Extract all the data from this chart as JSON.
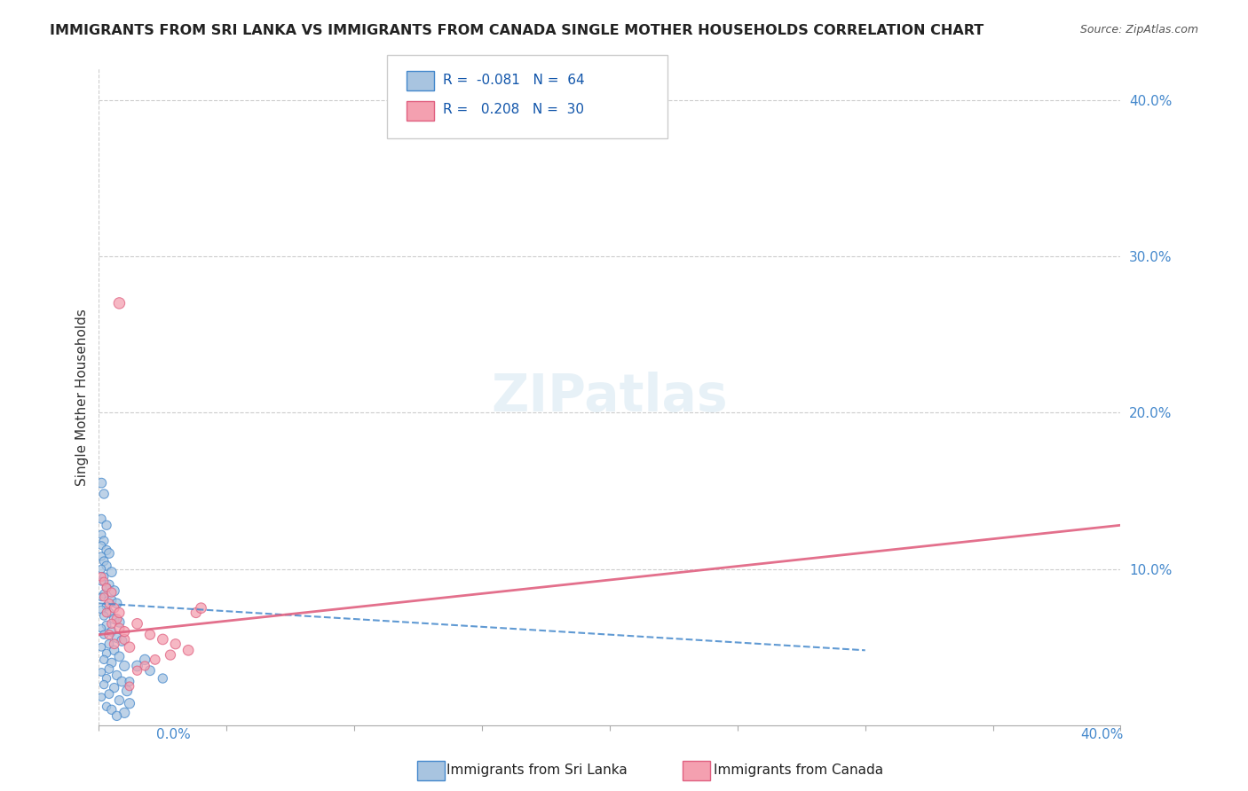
{
  "title": "IMMIGRANTS FROM SRI LANKA VS IMMIGRANTS FROM CANADA SINGLE MOTHER HOUSEHOLDS CORRELATION CHART",
  "source": "Source: ZipAtlas.com",
  "ylabel": "Single Mother Households",
  "xlim": [
    0,
    0.4
  ],
  "ylim": [
    0,
    0.42
  ],
  "legend_r_blue": "-0.081",
  "legend_n_blue": "64",
  "legend_r_pink": "0.208",
  "legend_n_pink": "30",
  "blue_color": "#a8c4e0",
  "pink_color": "#f4a0b0",
  "trend_blue_color": "#4488cc",
  "trend_pink_color": "#e06080",
  "sri_lanka_points": [
    [
      0.001,
      0.155
    ],
    [
      0.002,
      0.148
    ],
    [
      0.001,
      0.132
    ],
    [
      0.003,
      0.128
    ],
    [
      0.001,
      0.122
    ],
    [
      0.002,
      0.118
    ],
    [
      0.001,
      0.115
    ],
    [
      0.003,
      0.112
    ],
    [
      0.004,
      0.11
    ],
    [
      0.001,
      0.108
    ],
    [
      0.002,
      0.105
    ],
    [
      0.003,
      0.102
    ],
    [
      0.001,
      0.1
    ],
    [
      0.005,
      0.098
    ],
    [
      0.002,
      0.095
    ],
    [
      0.001,
      0.092
    ],
    [
      0.004,
      0.09
    ],
    [
      0.003,
      0.088
    ],
    [
      0.006,
      0.086
    ],
    [
      0.002,
      0.084
    ],
    [
      0.001,
      0.082
    ],
    [
      0.005,
      0.08
    ],
    [
      0.007,
      0.078
    ],
    [
      0.003,
      0.076
    ],
    [
      0.001,
      0.074
    ],
    [
      0.004,
      0.072
    ],
    [
      0.002,
      0.07
    ],
    [
      0.006,
      0.068
    ],
    [
      0.008,
      0.066
    ],
    [
      0.003,
      0.064
    ],
    [
      0.001,
      0.062
    ],
    [
      0.005,
      0.06
    ],
    [
      0.002,
      0.058
    ],
    [
      0.007,
      0.056
    ],
    [
      0.009,
      0.054
    ],
    [
      0.004,
      0.052
    ],
    [
      0.001,
      0.05
    ],
    [
      0.006,
      0.048
    ],
    [
      0.003,
      0.046
    ],
    [
      0.008,
      0.044
    ],
    [
      0.002,
      0.042
    ],
    [
      0.005,
      0.04
    ],
    [
      0.01,
      0.038
    ],
    [
      0.004,
      0.036
    ],
    [
      0.001,
      0.034
    ],
    [
      0.007,
      0.032
    ],
    [
      0.003,
      0.03
    ],
    [
      0.009,
      0.028
    ],
    [
      0.002,
      0.026
    ],
    [
      0.006,
      0.024
    ],
    [
      0.011,
      0.022
    ],
    [
      0.004,
      0.02
    ],
    [
      0.001,
      0.018
    ],
    [
      0.008,
      0.016
    ],
    [
      0.012,
      0.014
    ],
    [
      0.003,
      0.012
    ],
    [
      0.005,
      0.01
    ],
    [
      0.01,
      0.008
    ],
    [
      0.007,
      0.006
    ],
    [
      0.015,
      0.038
    ],
    [
      0.018,
      0.042
    ],
    [
      0.02,
      0.035
    ],
    [
      0.025,
      0.03
    ],
    [
      0.012,
      0.028
    ]
  ],
  "canada_points": [
    [
      0.001,
      0.095
    ],
    [
      0.002,
      0.092
    ],
    [
      0.003,
      0.088
    ],
    [
      0.005,
      0.085
    ],
    [
      0.002,
      0.082
    ],
    [
      0.004,
      0.078
    ],
    [
      0.006,
      0.075
    ],
    [
      0.003,
      0.072
    ],
    [
      0.007,
      0.068
    ],
    [
      0.005,
      0.065
    ],
    [
      0.008,
      0.062
    ],
    [
      0.004,
      0.058
    ],
    [
      0.01,
      0.055
    ],
    [
      0.006,
      0.052
    ],
    [
      0.012,
      0.05
    ],
    [
      0.008,
      0.072
    ],
    [
      0.015,
      0.065
    ],
    [
      0.01,
      0.06
    ],
    [
      0.02,
      0.058
    ],
    [
      0.025,
      0.055
    ],
    [
      0.03,
      0.052
    ],
    [
      0.035,
      0.048
    ],
    [
      0.038,
      0.072
    ],
    [
      0.04,
      0.075
    ],
    [
      0.028,
      0.045
    ],
    [
      0.022,
      0.042
    ],
    [
      0.018,
      0.038
    ],
    [
      0.015,
      0.035
    ],
    [
      0.012,
      0.025
    ],
    [
      0.008,
      0.27
    ]
  ],
  "sri_lanka_sizes": [
    60,
    55,
    50,
    55,
    45,
    50,
    40,
    55,
    60,
    45,
    50,
    55,
    40,
    60,
    45,
    40,
    55,
    50,
    65,
    45,
    40,
    55,
    60,
    50,
    40,
    55,
    45,
    60,
    65,
    50,
    40,
    55,
    45,
    60,
    65,
    50,
    40,
    55,
    45,
    60,
    45,
    55,
    65,
    50,
    40,
    55,
    45,
    60,
    45,
    55,
    65,
    50,
    40,
    55,
    65,
    45,
    55,
    65,
    55,
    70,
    65,
    60,
    55,
    50
  ],
  "canada_sizes": [
    50,
    45,
    50,
    55,
    45,
    55,
    60,
    50,
    60,
    55,
    65,
    55,
    65,
    60,
    70,
    65,
    70,
    65,
    65,
    70,
    65,
    70,
    65,
    70,
    65,
    60,
    55,
    55,
    50,
    80
  ]
}
